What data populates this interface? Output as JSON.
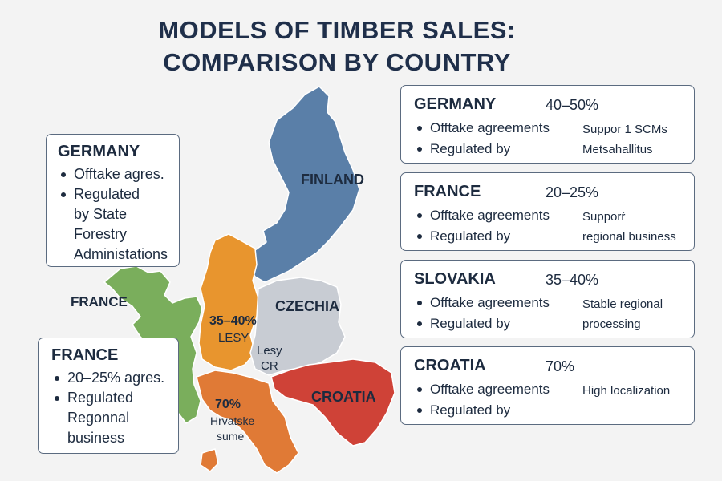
{
  "title": {
    "line1": "MODELS OF TIMBER SALES:",
    "line2": "COMPARISON BY COUNTRY"
  },
  "map": {
    "finland": "FINLAND",
    "france": "FRANCE",
    "czechia": "CZECHIA",
    "croatia": "CROATIA",
    "lesy_pct": "35–40%",
    "lesy_name": "LESY",
    "lesy_cr_line1": "Lesy",
    "lesy_cr_line2": "CR",
    "hrv_pct": "70%",
    "hrv_line1": "Hrvatske",
    "hrv_line2": "sume",
    "colors": {
      "finland": "#5a7fa8",
      "france": "#7aae5c",
      "germany": "#e8952e",
      "czechia": "#c8ccd3",
      "croatia": "#cf4237",
      "italy": "#e07a36"
    }
  },
  "left_boxes": [
    {
      "title": "GERMANY",
      "items": [
        [
          "Offtake agres."
        ],
        [
          "Regulated",
          "by State",
          "Forestry",
          "Administations"
        ]
      ]
    },
    {
      "title": "FRANCE",
      "items": [
        [
          "20–25% agres."
        ],
        [
          "Regulated",
          "Regonnal",
          "business"
        ]
      ]
    }
  ],
  "cards": [
    {
      "country": "GERMANY",
      "pct": "40–50%",
      "items": [
        "Offtake agreements",
        "Regulated by"
      ],
      "note": [
        "Suppor 1 SCMs",
        "Metsahallitus"
      ]
    },
    {
      "country": "FRANCE",
      "pct": "20–25%",
      "items": [
        "Offtake agreements",
        "Regulated by"
      ],
      "note": [
        "Supporŕ",
        "regional business"
      ]
    },
    {
      "country": "SLOVAKIA",
      "pct": "35–40%",
      "items": [
        "Offtake agreements",
        "Regulated by"
      ],
      "note": [
        "Stable regional",
        "processing"
      ]
    },
    {
      "country": "CROATIA",
      "pct": "70%",
      "items": [
        "Offtake agreements",
        "Regulated by"
      ],
      "note": [
        "High localization"
      ]
    }
  ]
}
